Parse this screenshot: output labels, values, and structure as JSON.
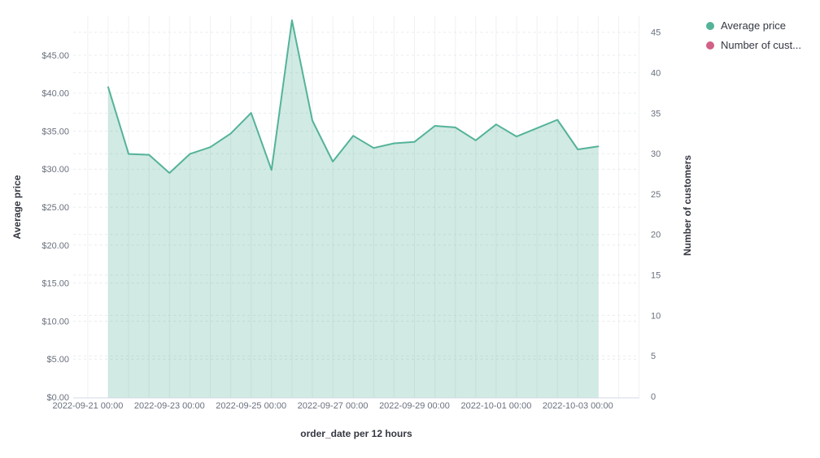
{
  "legend": {
    "position": "top-right",
    "items": [
      {
        "label": "Average price",
        "color": "#54B399"
      },
      {
        "label": "Number of cust...",
        "color": "#D36086"
      }
    ]
  },
  "chart_data": {
    "type": "area",
    "title": "",
    "interval": "12 hours",
    "grid": true,
    "legend_position": "right",
    "x_axis": {
      "label": "order_date per 12 hours",
      "tick_labels": [
        "2022-09-21 00:00",
        "2022-09-23 00:00",
        "2022-09-25 00:00",
        "2022-09-27 00:00",
        "2022-09-29 00:00",
        "2022-10-01 00:00",
        "2022-10-03 00:00"
      ]
    },
    "left_axis": {
      "label": "Average price",
      "tick_labels": [
        "$0.00",
        "$5.00",
        "$10.00",
        "$15.00",
        "$20.00",
        "$25.00",
        "$30.00",
        "$35.00",
        "$40.00",
        "$45.00"
      ],
      "range": [
        0,
        50
      ]
    },
    "right_axis": {
      "label": "Number of customers",
      "tick_labels": [
        "0",
        "5",
        "10",
        "15",
        "20",
        "25",
        "30",
        "35",
        "40",
        "45"
      ],
      "range": [
        0,
        47
      ]
    },
    "series": [
      {
        "name": "Average price",
        "color": "#54B399",
        "fill_opacity": 0.27,
        "x": [
          "2022-09-21 12:00",
          "2022-09-22 00:00",
          "2022-09-22 12:00",
          "2022-09-23 00:00",
          "2022-09-23 12:00",
          "2022-09-24 00:00",
          "2022-09-24 12:00",
          "2022-09-25 00:00",
          "2022-09-25 12:00",
          "2022-09-26 00:00",
          "2022-09-26 12:00",
          "2022-09-27 00:00",
          "2022-09-27 12:00",
          "2022-09-28 00:00",
          "2022-09-28 12:00",
          "2022-09-29 00:00",
          "2022-09-29 12:00",
          "2022-09-30 00:00",
          "2022-09-30 12:00",
          "2022-10-01 00:00",
          "2022-10-01 12:00",
          "2022-10-02 00:00",
          "2022-10-02 12:00",
          "2022-10-03 00:00",
          "2022-10-03 12:00"
        ],
        "values": [
          40.8,
          32.0,
          31.9,
          29.5,
          32.0,
          32.9,
          34.7,
          37.4,
          29.9,
          49.6,
          36.4,
          31.0,
          34.4,
          32.8,
          33.4,
          33.6,
          35.7,
          35.5,
          33.8,
          35.9,
          34.3,
          35.4,
          36.5,
          32.6,
          33.0
        ]
      },
      {
        "name": "Number of customers",
        "color": "#D36086",
        "values": []
      }
    ]
  }
}
